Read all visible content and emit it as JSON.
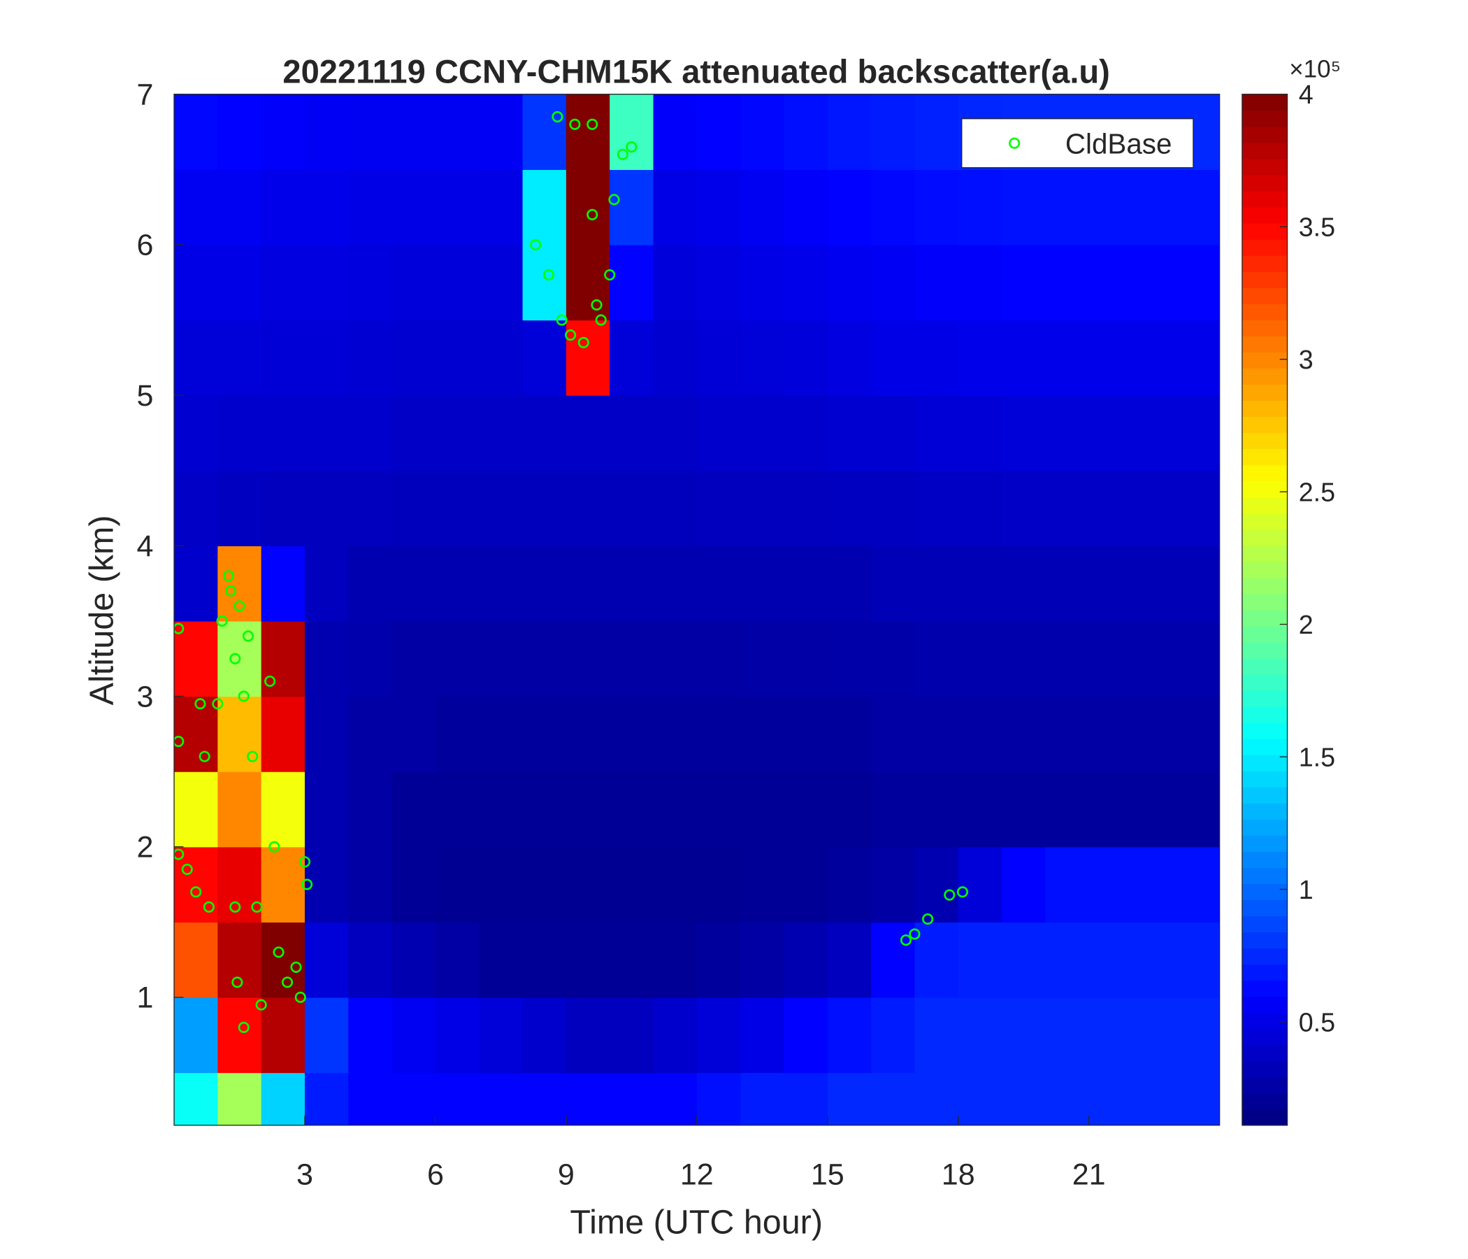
{
  "chart_data": {
    "type": "heatmap",
    "title": "20221119 CCNY-CHM15K attenuated backscatter(a.u)",
    "x_label": "Time (UTC hour)",
    "y_label": "Altitude (km)",
    "xlim": [
      0,
      24
    ],
    "ylim": [
      0.15,
      7
    ],
    "xticks": [
      3,
      6,
      9,
      12,
      15,
      18,
      21
    ],
    "yticks": [
      1,
      2,
      3,
      4,
      5,
      6,
      7
    ],
    "colormap": "jet",
    "clim": [
      0.11,
      4
    ],
    "cticks": [
      0.5,
      1,
      1.5,
      2,
      2.5,
      3,
      3.5,
      4
    ],
    "colorbar_exponent": "×10⁵",
    "legend_position": "upper right",
    "x": [
      0.5,
      1.5,
      2.5,
      3.5,
      4.5,
      5.5,
      6.5,
      7.5,
      8.5,
      9.5,
      10.5,
      11.5,
      12.5,
      13.5,
      14.5,
      15.5,
      16.5,
      17.5,
      18.5,
      19.5,
      20.5,
      21.5,
      22.5,
      23.5
    ],
    "y": [
      0.25,
      0.75,
      1.25,
      1.75,
      2.25,
      2.75,
      3.25,
      3.75,
      4.25,
      4.75,
      5.25,
      5.75,
      6.25,
      6.75
    ],
    "z": [
      [
        1.6,
        2.2,
        1.4,
        0.7,
        0.6,
        0.6,
        0.6,
        0.6,
        0.6,
        0.6,
        0.6,
        0.6,
        0.65,
        0.7,
        0.7,
        0.75,
        0.75,
        0.75,
        0.75,
        0.75,
        0.75,
        0.75,
        0.75,
        0.75
      ],
      [
        1.2,
        3.5,
        3.8,
        0.8,
        0.6,
        0.55,
        0.5,
        0.45,
        0.4,
        0.35,
        0.35,
        0.4,
        0.45,
        0.5,
        0.6,
        0.65,
        0.7,
        0.75,
        0.75,
        0.75,
        0.75,
        0.75,
        0.75,
        0.75
      ],
      [
        3.2,
        3.8,
        4,
        0.45,
        0.35,
        0.3,
        0.25,
        0.2,
        0.2,
        0.2,
        0.2,
        0.2,
        0.22,
        0.25,
        0.3,
        0.35,
        0.6,
        0.7,
        0.72,
        0.72,
        0.72,
        0.72,
        0.72,
        0.72
      ],
      [
        3.5,
        3.6,
        3,
        0.3,
        0.25,
        0.2,
        0.18,
        0.18,
        0.18,
        0.18,
        0.18,
        0.18,
        0.18,
        0.2,
        0.2,
        0.22,
        0.25,
        0.3,
        0.45,
        0.6,
        0.65,
        0.65,
        0.65,
        0.65
      ],
      [
        2.5,
        3,
        2.5,
        0.3,
        0.25,
        0.2,
        0.2,
        0.2,
        0.2,
        0.2,
        0.2,
        0.2,
        0.2,
        0.2,
        0.2,
        0.2,
        0.22,
        0.22,
        0.22,
        0.22,
        0.22,
        0.22,
        0.22,
        0.22
      ],
      [
        3.8,
        2.8,
        3.6,
        0.3,
        0.25,
        0.25,
        0.22,
        0.22,
        0.22,
        0.22,
        0.22,
        0.22,
        0.22,
        0.22,
        0.22,
        0.22,
        0.25,
        0.25,
        0.25,
        0.25,
        0.25,
        0.25,
        0.25,
        0.25
      ],
      [
        3.5,
        2.2,
        3.8,
        0.3,
        0.28,
        0.25,
        0.25,
        0.25,
        0.25,
        0.25,
        0.25,
        0.25,
        0.25,
        0.26,
        0.26,
        0.27,
        0.27,
        0.28,
        0.28,
        0.28,
        0.28,
        0.28,
        0.28,
        0.28
      ],
      [
        0.4,
        3,
        0.6,
        0.35,
        0.3,
        0.3,
        0.3,
        0.3,
        0.3,
        0.3,
        0.3,
        0.3,
        0.3,
        0.3,
        0.3,
        0.3,
        0.32,
        0.32,
        0.32,
        0.32,
        0.32,
        0.32,
        0.32,
        0.32
      ],
      [
        0.38,
        0.36,
        0.35,
        0.35,
        0.35,
        0.34,
        0.34,
        0.34,
        0.34,
        0.34,
        0.34,
        0.34,
        0.35,
        0.35,
        0.35,
        0.36,
        0.36,
        0.37,
        0.37,
        0.38,
        0.38,
        0.38,
        0.38,
        0.38
      ],
      [
        0.42,
        0.4,
        0.4,
        0.4,
        0.4,
        0.38,
        0.38,
        0.38,
        0.38,
        0.38,
        0.38,
        0.38,
        0.4,
        0.4,
        0.4,
        0.42,
        0.42,
        0.44,
        0.44,
        0.45,
        0.45,
        0.45,
        0.45,
        0.45
      ],
      [
        0.45,
        0.45,
        0.44,
        0.44,
        0.43,
        0.42,
        0.42,
        0.42,
        0.45,
        3.5,
        0.45,
        0.42,
        0.44,
        0.45,
        0.46,
        0.48,
        0.5,
        0.5,
        0.52,
        0.52,
        0.52,
        0.52,
        0.52,
        0.52
      ],
      [
        0.5,
        0.5,
        0.48,
        0.48,
        0.47,
        0.46,
        0.46,
        0.46,
        1.5,
        4,
        0.6,
        0.46,
        0.48,
        0.5,
        0.52,
        0.54,
        0.56,
        0.58,
        0.58,
        0.6,
        0.6,
        0.6,
        0.6,
        0.6
      ],
      [
        0.55,
        0.55,
        0.52,
        0.52,
        0.5,
        0.5,
        0.5,
        0.5,
        1.5,
        4,
        0.8,
        0.5,
        0.52,
        0.55,
        0.58,
        0.6,
        0.62,
        0.64,
        0.65,
        0.66,
        0.66,
        0.66,
        0.66,
        0.66
      ],
      [
        0.62,
        0.6,
        0.58,
        0.56,
        0.55,
        0.55,
        0.55,
        0.56,
        0.8,
        4,
        1.8,
        0.58,
        0.6,
        0.62,
        0.65,
        0.68,
        0.7,
        0.72,
        0.74,
        0.75,
        0.75,
        0.75,
        0.75,
        0.75
      ]
    ],
    "series": [
      {
        "name": "CldBase",
        "color": "#00ff00",
        "x": [
          0.1,
          0.1,
          0.1,
          0.3,
          0.5,
          0.6,
          0.7,
          0.8,
          1.0,
          1.1,
          1.25,
          1.3,
          1.4,
          1.5,
          1.6,
          1.4,
          1.45,
          1.6,
          1.7,
          1.8,
          1.9,
          2.0,
          2.2,
          2.3,
          2.4,
          2.6,
          2.8,
          2.9,
          3.0,
          3.05,
          8.3,
          8.6,
          8.8,
          8.9,
          9.1,
          9.2,
          9.4,
          9.6,
          9.6,
          9.7,
          9.8,
          10.0,
          10.1,
          10.3,
          10.5,
          16.8,
          17.0,
          17.3,
          17.8,
          18.1
        ],
        "values": [
          3.45,
          2.7,
          1.95,
          1.85,
          1.7,
          2.95,
          2.6,
          1.6,
          2.95,
          3.5,
          3.8,
          3.7,
          3.25,
          3.6,
          3.0,
          1.6,
          1.1,
          0.8,
          3.4,
          2.6,
          1.6,
          0.95,
          3.1,
          2.0,
          1.3,
          1.1,
          1.2,
          1.0,
          1.9,
          1.75,
          6.0,
          5.8,
          6.85,
          5.5,
          5.4,
          6.8,
          5.35,
          6.8,
          6.2,
          5.6,
          5.5,
          5.8,
          6.3,
          6.6,
          6.65,
          1.38,
          1.42,
          1.52,
          1.68,
          1.7
        ]
      }
    ]
  }
}
